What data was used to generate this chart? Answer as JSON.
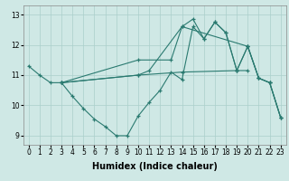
{
  "background_color": "#cfe8e5",
  "grid_color": "#aacfcb",
  "line_color": "#2a7a70",
  "series": [
    {
      "x": [
        0,
        1,
        2,
        3,
        10,
        14,
        19,
        20,
        21,
        22,
        23
      ],
      "y": [
        11.3,
        11.0,
        10.75,
        10.75,
        11.0,
        11.1,
        11.15,
        11.95,
        10.9,
        10.75,
        9.6
      ]
    },
    {
      "x": [
        3,
        4,
        5,
        6,
        7,
        8,
        9,
        10,
        11,
        12,
        13,
        14,
        15,
        16,
        17,
        18,
        19,
        20
      ],
      "y": [
        10.75,
        10.3,
        9.9,
        9.55,
        9.3,
        9.0,
        9.0,
        9.65,
        10.1,
        10.5,
        11.1,
        10.85,
        12.6,
        12.2,
        12.75,
        12.4,
        11.15,
        11.15
      ]
    },
    {
      "x": [
        3,
        10,
        11,
        14,
        15,
        16,
        17,
        18,
        19,
        20,
        21,
        22,
        23
      ],
      "y": [
        10.75,
        11.0,
        11.15,
        12.6,
        12.85,
        12.2,
        12.75,
        12.4,
        11.15,
        11.95,
        10.9,
        10.75,
        9.6
      ]
    },
    {
      "x": [
        3,
        10,
        13,
        14,
        20,
        21,
        22,
        23
      ],
      "y": [
        10.75,
        11.5,
        11.5,
        12.6,
        11.95,
        10.9,
        10.75,
        9.6
      ]
    }
  ],
  "xlabel": "Humidex (Indice chaleur)",
  "xlim": [
    -0.5,
    23.5
  ],
  "ylim": [
    8.7,
    13.3
  ],
  "xticks": [
    0,
    1,
    2,
    3,
    4,
    5,
    6,
    7,
    8,
    9,
    10,
    11,
    12,
    13,
    14,
    15,
    16,
    17,
    18,
    19,
    20,
    21,
    22,
    23
  ],
  "yticks": [
    9,
    10,
    11,
    12,
    13
  ],
  "tick_fontsize": 5.5,
  "xlabel_fontsize": 7.0
}
